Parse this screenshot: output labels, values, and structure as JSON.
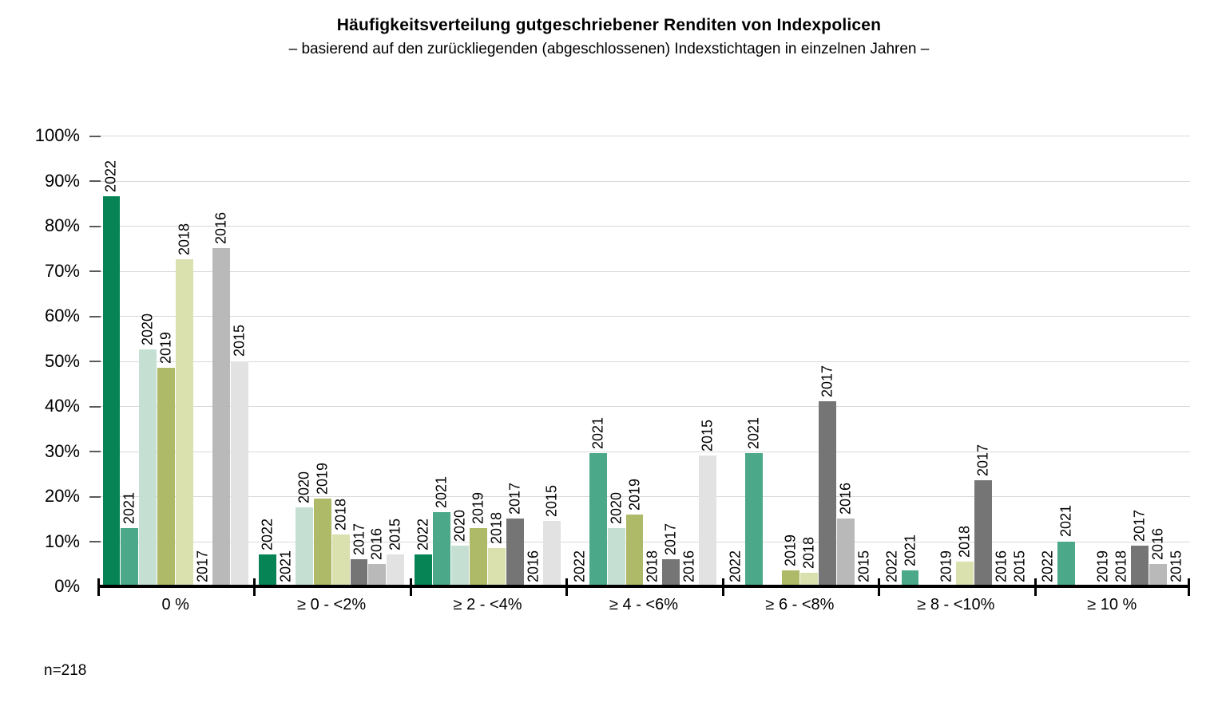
{
  "chart_data": {
    "type": "bar",
    "title": "Häufigkeitsverteilung gutgeschriebener Renditen von Indexpolicen",
    "subtitle": "– basierend auf den zurückliegenden (abgeschlossenen) Indexstichtagen in einzelnen Jahren –",
    "note": "n=218",
    "ylim": [
      0,
      100
    ],
    "grid": "horizontal",
    "gridline_color": "#d9d9d9",
    "y_tick_labels": [
      "100%",
      "90%",
      "80%",
      "70%",
      "60%",
      "50%",
      "40%",
      "30%",
      "20%",
      "10%",
      "0%"
    ],
    "categories": [
      "0 %",
      "≥ 0 - <2%",
      "≥ 2 - <4%",
      "≥ 4 - <6%",
      "≥ 6 - <8%",
      "≥ 8 - <10%",
      "≥ 10 %"
    ],
    "bar_label_style": "year name rotated 90deg above each bar; zero-value bars keep label at axis",
    "series": [
      {
        "name": "2022",
        "color": "#068455",
        "values": [
          86.5,
          7,
          7,
          0,
          0,
          0,
          0
        ],
        "label_visible": [
          true,
          true,
          true,
          true,
          true,
          true,
          true
        ]
      },
      {
        "name": "2021",
        "color": "#4BA98A",
        "values": [
          13,
          0,
          16.5,
          29.5,
          29.5,
          3.5,
          10
        ],
        "label_visible": [
          true,
          true,
          true,
          true,
          true,
          true,
          true
        ]
      },
      {
        "name": "2020",
        "color": "#C5E0D2",
        "values": [
          52.5,
          17.5,
          9,
          13,
          0,
          0,
          0
        ],
        "label_visible": [
          true,
          true,
          true,
          true,
          false,
          false,
          false
        ]
      },
      {
        "name": "2019",
        "color": "#AFBA68",
        "values": [
          48.5,
          19.5,
          13,
          16,
          3.5,
          0,
          0
        ],
        "label_visible": [
          true,
          true,
          true,
          true,
          true,
          true,
          true
        ]
      },
      {
        "name": "2018",
        "color": "#DAE0AE",
        "values": [
          72.5,
          11.5,
          8.5,
          0,
          3,
          5.5,
          0
        ],
        "label_visible": [
          true,
          true,
          true,
          true,
          true,
          true,
          true
        ]
      },
      {
        "name": "2017",
        "color": "#757575",
        "values": [
          0,
          6,
          15,
          6,
          41,
          23.5,
          9
        ],
        "label_visible": [
          true,
          true,
          true,
          true,
          true,
          true,
          true
        ]
      },
      {
        "name": "2016",
        "color": "#B9B9B9",
        "values": [
          75,
          5,
          0,
          0,
          15,
          0,
          5
        ],
        "label_visible": [
          true,
          true,
          true,
          true,
          true,
          true,
          true
        ]
      },
      {
        "name": "2015",
        "color": "#E2E2E2",
        "values": [
          50,
          7,
          14.5,
          29,
          0,
          0,
          0
        ],
        "label_visible": [
          true,
          true,
          true,
          true,
          true,
          true,
          true
        ]
      }
    ]
  }
}
